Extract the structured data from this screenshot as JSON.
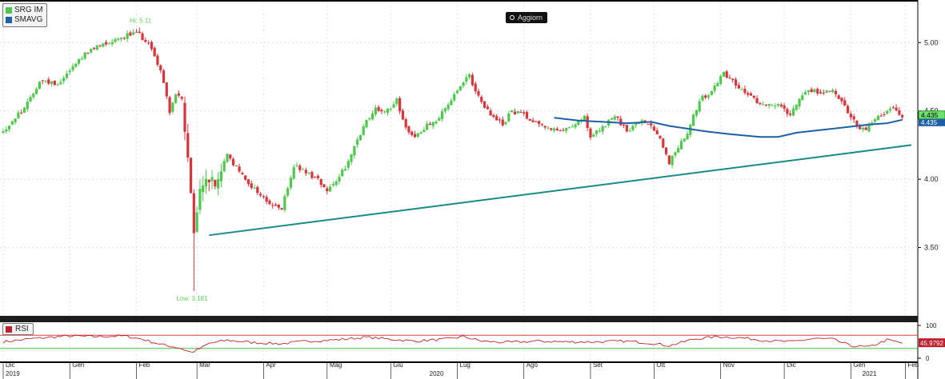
{
  "legend": {
    "items": [
      {
        "label": "SRG IM",
        "color": "#4ec94e"
      },
      {
        "label": "SMAVG",
        "color": "#1f5fa8"
      }
    ]
  },
  "toolbar": {
    "update_label": "Aggiorn"
  },
  "rsi_legend": {
    "label": "RSI",
    "color": "#c0202e"
  },
  "annotations": {
    "hi": "Hi: 5.11",
    "low": "Low: 3.181"
  },
  "badges": {
    "price": "4.435",
    "sma": "4.435",
    "rsi": "45.9792"
  },
  "colors": {
    "up": "#4ec94e",
    "down": "#d9343a",
    "sma": "#1f5fa8",
    "trend": "#1a8a86",
    "rsi": "#c0202e",
    "rsi_upper": "#d94040",
    "rsi_lower": "#43c043"
  },
  "chart_data": {
    "type": "candlestick",
    "series_name": "SRG IM",
    "ylim": [
      3.0,
      5.3
    ],
    "y_ticks": [
      {
        "label": "5.00",
        "value": 5.0
      },
      {
        "label": "4.50",
        "value": 4.5
      },
      {
        "label": "4.00",
        "value": 4.0
      },
      {
        "label": "3.50",
        "value": 3.5
      }
    ],
    "x_ticks": [
      {
        "label": "Dic",
        "value": 0
      },
      {
        "label": "Gen",
        "value": 22
      },
      {
        "label": "Feb",
        "value": 44
      },
      {
        "label": "Mar",
        "value": 64
      },
      {
        "label": "Apr",
        "value": 86
      },
      {
        "label": "Mag",
        "value": 107
      },
      {
        "label": "Giu",
        "value": 128
      },
      {
        "label": "Lug",
        "value": 150
      },
      {
        "label": "Ago",
        "value": 172
      },
      {
        "label": "Set",
        "value": 194
      },
      {
        "label": "Ott",
        "value": 215
      },
      {
        "label": "Nov",
        "value": 237
      },
      {
        "label": "Dic",
        "value": 258
      },
      {
        "label": "Gen",
        "value": 280
      },
      {
        "label": "Feb",
        "value": 298
      }
    ],
    "x_range": [
      0,
      300
    ],
    "year_labels": [
      {
        "label": "2019",
        "value": 0
      },
      {
        "label": "2020",
        "value": 140
      },
      {
        "label": "2021",
        "value": 283
      }
    ],
    "price_path": [
      [
        0,
        4.35
      ],
      [
        8,
        4.55
      ],
      [
        12,
        4.72
      ],
      [
        18,
        4.7
      ],
      [
        26,
        4.9
      ],
      [
        32,
        4.98
      ],
      [
        40,
        5.05
      ],
      [
        44,
        5.07
      ],
      [
        48,
        5.0
      ],
      [
        52,
        4.8
      ],
      [
        55,
        4.5
      ],
      [
        57,
        4.62
      ],
      [
        59,
        4.58
      ],
      [
        61,
        4.12
      ],
      [
        63,
        3.6
      ],
      [
        65,
        3.9
      ],
      [
        67,
        4.02
      ],
      [
        70,
        3.95
      ],
      [
        74,
        4.18
      ],
      [
        78,
        4.05
      ],
      [
        82,
        3.95
      ],
      [
        88,
        3.82
      ],
      [
        92,
        3.78
      ],
      [
        96,
        4.1
      ],
      [
        100,
        4.05
      ],
      [
        104,
        4.0
      ],
      [
        107,
        3.92
      ],
      [
        110,
        4.0
      ],
      [
        114,
        4.12
      ],
      [
        117,
        4.28
      ],
      [
        120,
        4.42
      ],
      [
        123,
        4.52
      ],
      [
        126,
        4.48
      ],
      [
        130,
        4.58
      ],
      [
        133,
        4.38
      ],
      [
        136,
        4.3
      ],
      [
        140,
        4.4
      ],
      [
        144,
        4.45
      ],
      [
        148,
        4.58
      ],
      [
        152,
        4.7
      ],
      [
        154,
        4.76
      ],
      [
        156,
        4.65
      ],
      [
        158,
        4.55
      ],
      [
        162,
        4.45
      ],
      [
        165,
        4.4
      ],
      [
        168,
        4.5
      ],
      [
        172,
        4.47
      ],
      [
        176,
        4.42
      ],
      [
        180,
        4.38
      ],
      [
        184,
        4.34
      ],
      [
        188,
        4.4
      ],
      [
        192,
        4.45
      ],
      [
        194,
        4.3
      ],
      [
        198,
        4.38
      ],
      [
        202,
        4.46
      ],
      [
        206,
        4.35
      ],
      [
        210,
        4.42
      ],
      [
        214,
        4.4
      ],
      [
        217,
        4.3
      ],
      [
        220,
        4.12
      ],
      [
        223,
        4.24
      ],
      [
        226,
        4.35
      ],
      [
        230,
        4.58
      ],
      [
        234,
        4.64
      ],
      [
        238,
        4.78
      ],
      [
        241,
        4.72
      ],
      [
        244,
        4.65
      ],
      [
        248,
        4.58
      ],
      [
        252,
        4.55
      ],
      [
        256,
        4.54
      ],
      [
        260,
        4.48
      ],
      [
        263,
        4.6
      ],
      [
        266,
        4.66
      ],
      [
        270,
        4.63
      ],
      [
        274,
        4.66
      ],
      [
        278,
        4.54
      ],
      [
        282,
        4.38
      ],
      [
        285,
        4.36
      ],
      [
        288,
        4.44
      ],
      [
        291,
        4.48
      ],
      [
        294,
        4.53
      ],
      [
        297,
        4.44
      ]
    ],
    "candle_count": 297,
    "sma_path": [
      [
        182,
        4.45
      ],
      [
        190,
        4.43
      ],
      [
        198,
        4.42
      ],
      [
        206,
        4.41
      ],
      [
        214,
        4.42
      ],
      [
        220,
        4.39
      ],
      [
        226,
        4.37
      ],
      [
        232,
        4.35
      ],
      [
        240,
        4.33
      ],
      [
        250,
        4.31
      ],
      [
        256,
        4.31
      ],
      [
        262,
        4.34
      ],
      [
        270,
        4.36
      ],
      [
        278,
        4.38
      ],
      [
        286,
        4.4
      ],
      [
        292,
        4.41
      ],
      [
        297,
        4.435
      ]
    ],
    "trendline": {
      "x1": 68,
      "y1": 3.59,
      "x2": 300,
      "y2": 4.25
    },
    "hi": {
      "x": 45,
      "value": 5.11
    },
    "low": {
      "x": 63,
      "value": 3.181
    },
    "last": 4.435,
    "rsi": {
      "ylim": [
        0,
        100
      ],
      "upper": 70,
      "lower": 30,
      "ticks": [
        {
          "label": "100",
          "value": 100
        },
        {
          "label": "0",
          "value": 0
        }
      ],
      "last": 45.9792,
      "path": [
        [
          0,
          50
        ],
        [
          10,
          60
        ],
        [
          22,
          68
        ],
        [
          30,
          66
        ],
        [
          40,
          68
        ],
        [
          46,
          58
        ],
        [
          52,
          42
        ],
        [
          58,
          32
        ],
        [
          62,
          18
        ],
        [
          64,
          24
        ],
        [
          68,
          45
        ],
        [
          74,
          55
        ],
        [
          82,
          48
        ],
        [
          92,
          44
        ],
        [
          100,
          52
        ],
        [
          110,
          56
        ],
        [
          120,
          64
        ],
        [
          128,
          58
        ],
        [
          136,
          52
        ],
        [
          146,
          58
        ],
        [
          152,
          66
        ],
        [
          158,
          52
        ],
        [
          166,
          48
        ],
        [
          176,
          52
        ],
        [
          186,
          50
        ],
        [
          196,
          50
        ],
        [
          206,
          52
        ],
        [
          214,
          46
        ],
        [
          220,
          38
        ],
        [
          228,
          58
        ],
        [
          236,
          66
        ],
        [
          244,
          62
        ],
        [
          252,
          54
        ],
        [
          260,
          50
        ],
        [
          268,
          60
        ],
        [
          274,
          58
        ],
        [
          280,
          38
        ],
        [
          286,
          34
        ],
        [
          292,
          56
        ],
        [
          297,
          46
        ]
      ]
    }
  }
}
